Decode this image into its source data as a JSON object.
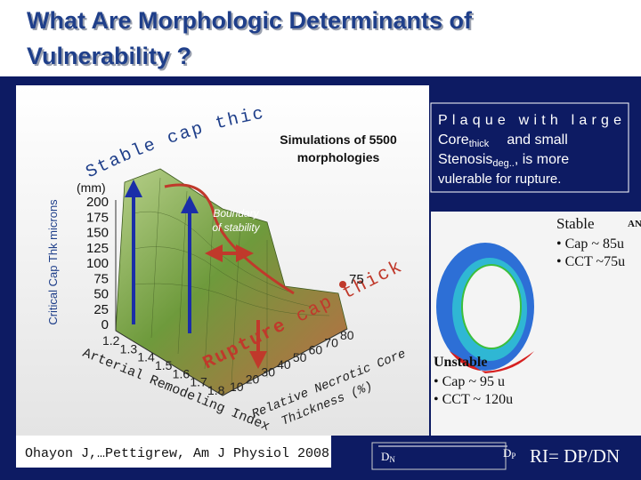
{
  "title": {
    "line1": "What Are Morphologic Determinants of",
    "line2": "Vulnerability ?"
  },
  "plot": {
    "stable_axis": "Stable cap thickness",
    "z_unit": "(mm)",
    "z_axis_label": "Critical Cap Thk microns",
    "z_ticks": [
      "200",
      "175",
      "150",
      "125",
      "100",
      "75",
      "50",
      "25",
      "0"
    ],
    "boundary": {
      "line1": "Boundary",
      "line2": "of stability"
    },
    "simulations": {
      "line1": "Simulations of 5500",
      "line2": "morphologies"
    },
    "marker": "75",
    "rupture_word": "Rupture",
    "rupture_rest": "cap thickness",
    "x_ticks": [
      "1.2",
      "1.3",
      "1.4",
      "1.5",
      "1.6",
      "1.7",
      "1.8"
    ],
    "x_axis_label": "Arterial Remodeling Index",
    "y_ticks": [
      "10",
      "20",
      "30",
      "40",
      "50",
      "60",
      "70",
      "80"
    ],
    "y_axis_label": {
      "line1": "Relative Necrotic Core",
      "line2": "Thickness (%)"
    }
  },
  "callout": {
    "line1": "Plaque with large",
    "line2a": "Core",
    "line2sub": "thick",
    "line2b": "and small",
    "line3a": "Stenosis",
    "line3sub": "deg..",
    "line3b": ", is more",
    "line4": "vulerable for rupture."
  },
  "panel": {
    "stable": "Stable",
    "stable_cap": "• Cap ~ 85u",
    "stable_cct": "• CCT ~75u",
    "unstable": "Unstable",
    "unstable_cap": "• Cap ~ 95 u",
    "unstable_cct": "• CCT ~ 120u",
    "corner": "AN",
    "dn": "D",
    "dn_sub": "N",
    "dp": "D",
    "dp_sub": "P",
    "ri": "RI= DP/DN"
  },
  "citation": {
    "authors": "Ohayon J,…Pettigrew,",
    "journal": "Am J Physiol 2008"
  }
}
